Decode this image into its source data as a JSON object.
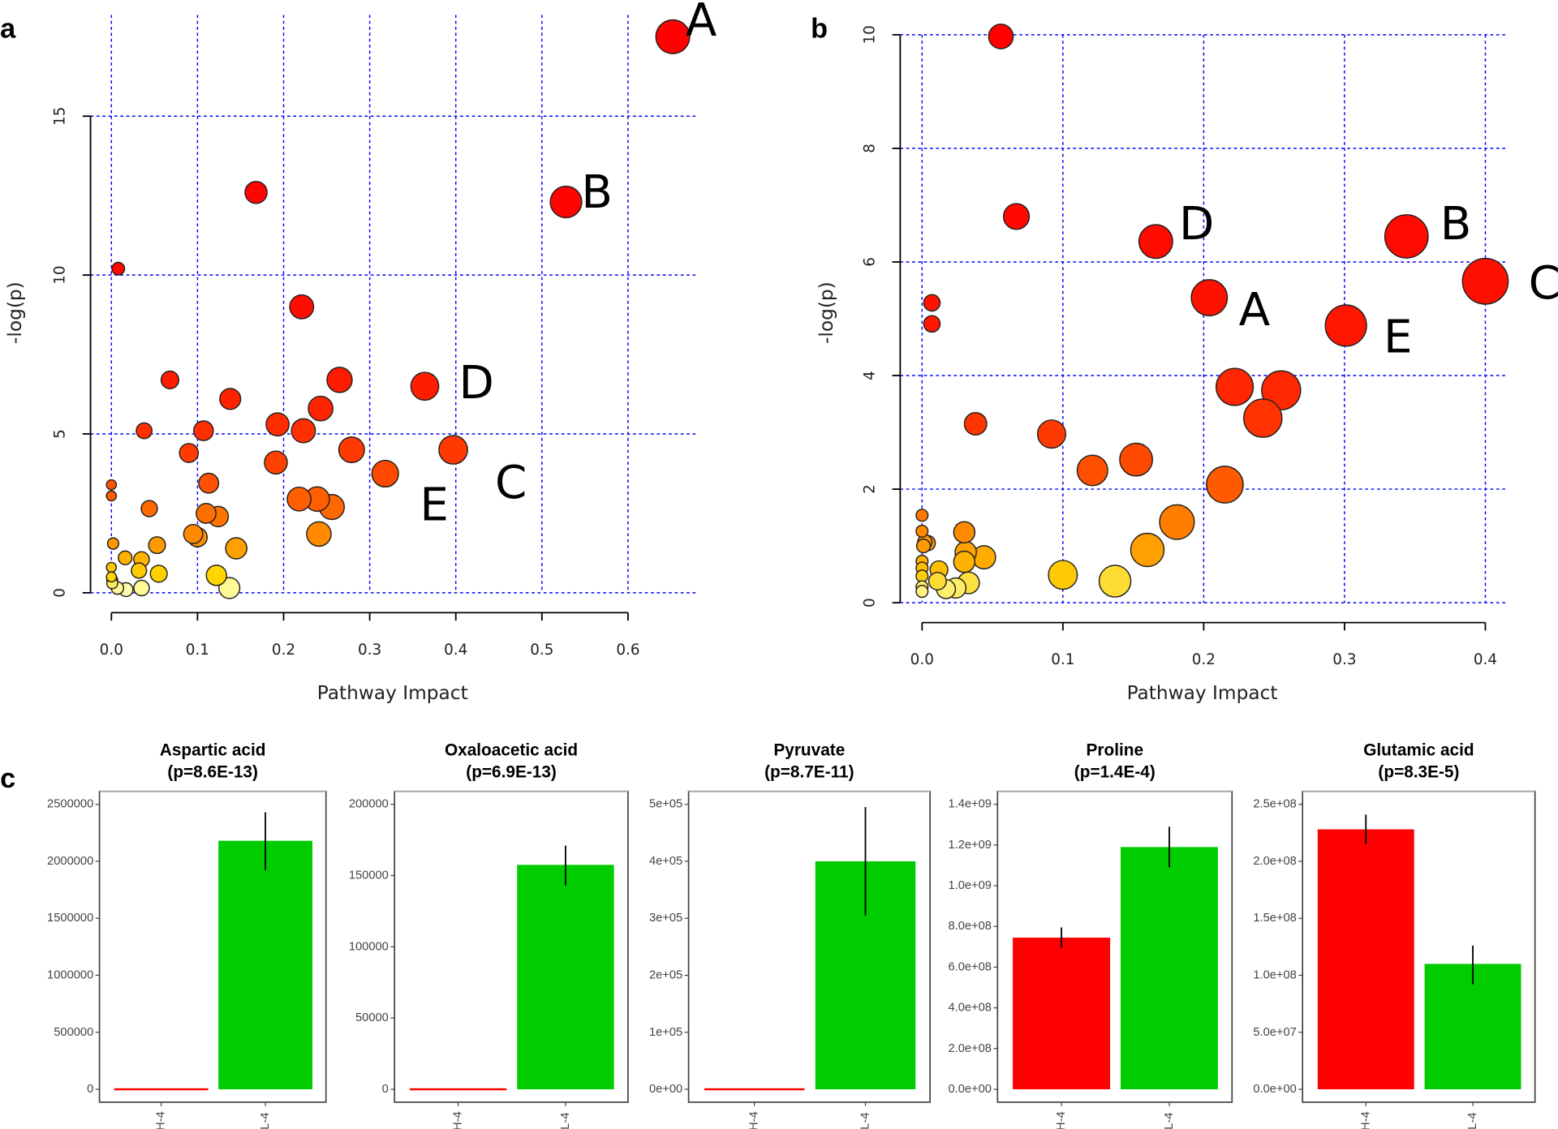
{
  "panel_labels": {
    "a": "a",
    "b": "b",
    "c": "c"
  },
  "chart_data": [
    {
      "id": "a",
      "type": "scatter",
      "xlabel": "Pathway Impact",
      "ylabel": "-log(p)",
      "xticks": [
        {
          "v": 0,
          "label": "0.0"
        },
        {
          "v": 0.1,
          "label": "0.1"
        },
        {
          "v": 0.2,
          "label": "0.2"
        },
        {
          "v": 0.3,
          "label": "0.3"
        },
        {
          "v": 0.4,
          "label": "0.4"
        },
        {
          "v": 0.5,
          "label": "0.5"
        },
        {
          "v": 0.6,
          "label": "0.6"
        }
      ],
      "yticks": [
        {
          "v": 0,
          "label": "0"
        },
        {
          "v": 5,
          "label": "5"
        },
        {
          "v": 10,
          "label": "10"
        },
        {
          "v": 15,
          "label": "15"
        }
      ],
      "grid": true,
      "points": [
        [
          0.652,
          17.5
        ],
        [
          0.528,
          12.3
        ],
        [
          0.168,
          12.6
        ],
        [
          0.008,
          10.2
        ],
        [
          0.221,
          9.0
        ],
        [
          0.068,
          6.7
        ],
        [
          0.265,
          6.7
        ],
        [
          0.364,
          6.5
        ],
        [
          0.138,
          6.1
        ],
        [
          0.243,
          5.8
        ],
        [
          0.038,
          5.1
        ],
        [
          0.107,
          5.1
        ],
        [
          0.193,
          5.3
        ],
        [
          0.223,
          5.1
        ],
        [
          0.09,
          4.4
        ],
        [
          0.279,
          4.5
        ],
        [
          0.397,
          4.5
        ],
        [
          0.191,
          4.1
        ],
        [
          0.318,
          3.75
        ],
        [
          0.0,
          3.4
        ],
        [
          0.0,
          3.05
        ],
        [
          0.113,
          3.45
        ],
        [
          0.044,
          2.65
        ],
        [
          0.218,
          2.95
        ],
        [
          0.239,
          2.95
        ],
        [
          0.256,
          2.7
        ],
        [
          0.11,
          2.5
        ],
        [
          0.124,
          2.4
        ],
        [
          0.095,
          1.85
        ],
        [
          0.1,
          1.75
        ],
        [
          0.241,
          1.85
        ],
        [
          0.002,
          1.55
        ],
        [
          0.053,
          1.5
        ],
        [
          0.145,
          1.4
        ],
        [
          0.016,
          1.1
        ],
        [
          0.035,
          1.05
        ],
        [
          0.0,
          0.8
        ],
        [
          0.032,
          0.7
        ],
        [
          0.055,
          0.6
        ],
        [
          0.122,
          0.55
        ],
        [
          0.0,
          0.5
        ],
        [
          0.001,
          0.4
        ],
        [
          0.001,
          0.3
        ],
        [
          0.007,
          0.15
        ],
        [
          0.017,
          0.1
        ],
        [
          0.035,
          0.15
        ],
        [
          0.137,
          0.15
        ]
      ],
      "annotations": [
        {
          "text": "A",
          "x": 0.685,
          "y": 18.0
        },
        {
          "text": "B",
          "x": 0.564,
          "y": 12.6
        },
        {
          "text": "D",
          "x": 0.424,
          "y": 6.6
        },
        {
          "text": "C",
          "x": 0.464,
          "y": 3.45
        },
        {
          "text": "E",
          "x": 0.375,
          "y": 2.75
        }
      ],
      "colors": {
        "high": "#ff0000",
        "mid": "#ffa500",
        "low": "#ffff00",
        "lowest": "#ffffe0"
      }
    },
    {
      "id": "b",
      "type": "scatter",
      "xlabel": "Pathway Impact",
      "ylabel": "-log(p)",
      "xticks": [
        {
          "v": 0,
          "label": "0.0"
        },
        {
          "v": 0.1,
          "label": "0.1"
        },
        {
          "v": 0.2,
          "label": "0.2"
        },
        {
          "v": 0.3,
          "label": "0.3"
        },
        {
          "v": 0.4,
          "label": "0.4"
        }
      ],
      "yticks": [
        {
          "v": 0,
          "label": "0"
        },
        {
          "v": 2,
          "label": "2"
        },
        {
          "v": 4,
          "label": "4"
        },
        {
          "v": 6,
          "label": "6"
        },
        {
          "v": 8,
          "label": "8"
        },
        {
          "v": 10,
          "label": "10"
        }
      ],
      "grid": true,
      "points": [
        [
          0.056,
          9.97
        ],
        [
          0.067,
          6.8
        ],
        [
          0.166,
          6.36
        ],
        [
          0.344,
          6.45
        ],
        [
          0.4,
          5.66
        ],
        [
          0.204,
          5.37
        ],
        [
          0.301,
          4.88
        ],
        [
          0.007,
          5.28
        ],
        [
          0.007,
          4.91
        ],
        [
          0.222,
          3.8
        ],
        [
          0.255,
          3.74
        ],
        [
          0.242,
          3.25
        ],
        [
          0.038,
          3.15
        ],
        [
          0.092,
          2.97
        ],
        [
          0.152,
          2.52
        ],
        [
          0.121,
          2.33
        ],
        [
          0.215,
          2.08
        ],
        [
          0.0,
          1.54
        ],
        [
          0.0,
          1.26
        ],
        [
          0.03,
          1.24
        ],
        [
          0.181,
          1.42
        ],
        [
          0.002,
          1.07
        ],
        [
          0.004,
          1.05
        ],
        [
          0.001,
          1.0
        ],
        [
          0.0,
          0.73
        ],
        [
          0.0,
          0.61
        ],
        [
          0.16,
          0.93
        ],
        [
          0.044,
          0.8
        ],
        [
          0.031,
          0.89
        ],
        [
          0.03,
          0.72
        ],
        [
          0.012,
          0.58
        ],
        [
          0.0,
          0.47
        ],
        [
          0.1,
          0.49
        ],
        [
          0.137,
          0.38
        ],
        [
          0.011,
          0.38
        ],
        [
          0.033,
          0.35
        ],
        [
          0.0,
          0.28
        ],
        [
          0.017,
          0.24
        ],
        [
          0.024,
          0.26
        ],
        [
          0.0,
          0.2
        ]
      ],
      "annotations": [
        {
          "text": "D",
          "x": 0.195,
          "y": 6.66
        },
        {
          "text": "B",
          "x": 0.379,
          "y": 6.66
        },
        {
          "text": "A",
          "x": 0.236,
          "y": 5.15
        },
        {
          "text": "C",
          "x": 0.442,
          "y": 5.62
        },
        {
          "text": "E",
          "x": 0.338,
          "y": 4.67
        }
      ]
    },
    {
      "id": "c1",
      "type": "bar",
      "title": "Aspartic acid",
      "p_text": "(p=8.6E-13)",
      "categories": [
        "H-4",
        "L-4"
      ],
      "ytick_values": [
        0,
        500000,
        1000000,
        1500000,
        2000000,
        2500000
      ],
      "ytick_labels": [
        "0",
        "500000",
        "1000000",
        "1500000",
        "2000000",
        "2500000"
      ],
      "values": [
        0,
        2180000
      ],
      "err_low": [
        0,
        1920000
      ],
      "err_high": [
        0,
        2430000
      ],
      "colors": [
        "#ff0000",
        "#00cc00"
      ]
    },
    {
      "id": "c2",
      "type": "bar",
      "title": "Oxaloacetic acid",
      "p_text": "(p=6.9E-13)",
      "categories": [
        "H-4",
        "L-4"
      ],
      "ytick_values": [
        0,
        50000,
        100000,
        150000,
        200000
      ],
      "ytick_labels": [
        "0",
        "50000",
        "100000",
        "150000",
        "200000"
      ],
      "values": [
        0,
        157500
      ],
      "err_low": [
        0,
        143000
      ],
      "err_high": [
        0,
        171000
      ],
      "colors": [
        "#ff0000",
        "#00cc00"
      ]
    },
    {
      "id": "c3",
      "type": "bar",
      "title": "Pyruvate",
      "p_text": "(p=8.7E-11)",
      "categories": [
        "H-4",
        "L-4"
      ],
      "ytick_values": [
        0,
        100000,
        200000,
        300000,
        400000,
        500000
      ],
      "ytick_labels": [
        "0e+00",
        "1e+05",
        "2e+05",
        "3e+05",
        "4e+05",
        "5e+05"
      ],
      "values": [
        0,
        400000
      ],
      "err_low": [
        0,
        305000
      ],
      "err_high": [
        0,
        495000
      ],
      "colors": [
        "#ff0000",
        "#00cc00"
      ]
    },
    {
      "id": "c4",
      "type": "bar",
      "title": "Proline",
      "p_text": "(p=1.4E-4)",
      "categories": [
        "H-4",
        "L-4"
      ],
      "ytick_values": [
        0,
        200000000,
        400000000,
        600000000,
        800000000,
        1000000000,
        1200000000,
        1400000000
      ],
      "ytick_labels": [
        "0.0e+00",
        "2.0e+08",
        "4.0e+08",
        "6.0e+08",
        "8.0e+08",
        "1.0e+09",
        "1.2e+09",
        "1.4e+09"
      ],
      "values": [
        745000000,
        1190000000
      ],
      "err_low": [
        695000000,
        1090000000
      ],
      "err_high": [
        795000000,
        1290000000
      ],
      "colors": [
        "#ff0000",
        "#00cc00"
      ]
    },
    {
      "id": "c5",
      "type": "bar",
      "title": "Glutamic acid",
      "p_text": "(p=8.3E-5)",
      "categories": [
        "H-4",
        "L-4"
      ],
      "ytick_values": [
        0,
        50000000,
        100000000,
        150000000,
        200000000,
        250000000
      ],
      "ytick_labels": [
        "0.0e+00",
        "5.0e+07",
        "1.0e+08",
        "1.5e+08",
        "2.0e+08",
        "2.5e+08"
      ],
      "values": [
        228000000,
        110000000
      ],
      "err_low": [
        215000000,
        92000000
      ],
      "err_high": [
        241000000,
        126000000
      ],
      "colors": [
        "#ff0000",
        "#00cc00"
      ]
    }
  ]
}
